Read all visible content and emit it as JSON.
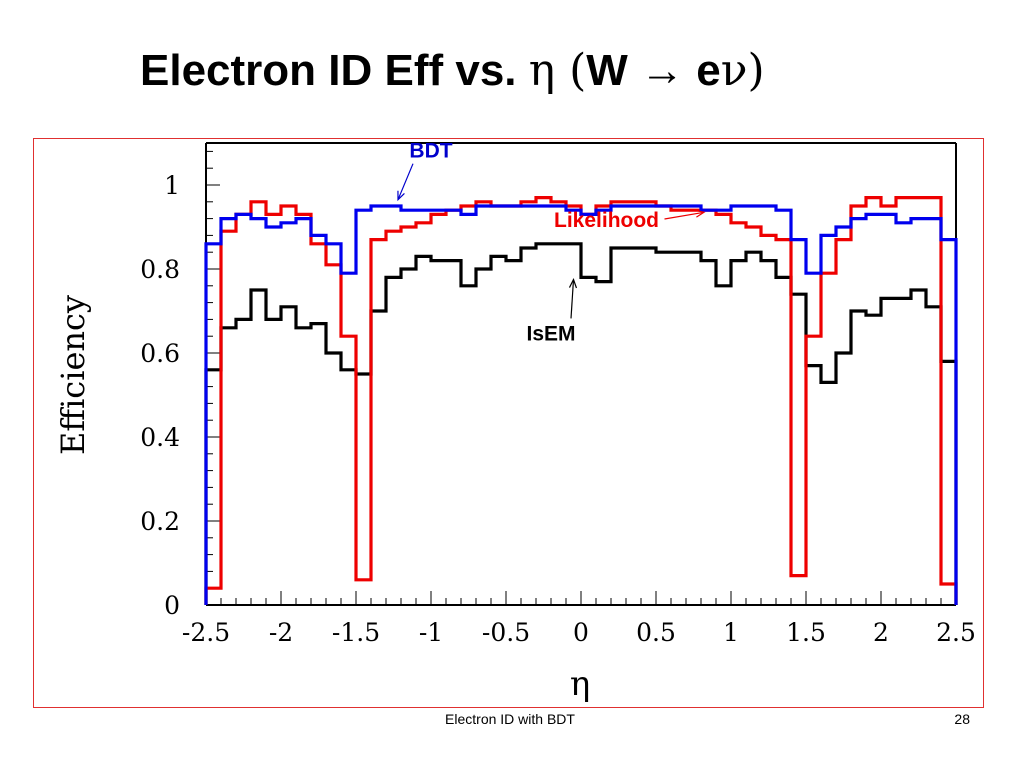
{
  "slide": {
    "title_parts": [
      "Electron ID Eff vs. ",
      "η",
      " (",
      "W ",
      "→",
      " e",
      "ν",
      ")"
    ],
    "footer": "Electron ID with BDT",
    "page_number": "28"
  },
  "chart_data": {
    "type": "line",
    "subtype": "step-histogram",
    "xlabel": "η",
    "ylabel": "Efficiency",
    "xlim": [
      -2.5,
      2.5
    ],
    "ylim": [
      0,
      1.1
    ],
    "x_ticks": [
      "-2.5",
      "-2",
      "-1.5",
      "-1",
      "-0.5",
      "0",
      "0.5",
      "1",
      "1.5",
      "2",
      "2.5"
    ],
    "x_tick_values": [
      -2.5,
      -2,
      -1.5,
      -1,
      -0.5,
      0,
      0.5,
      1,
      1.5,
      2,
      2.5
    ],
    "y_ticks": [
      "0",
      "0.2",
      "0.4",
      "0.6",
      "0.8",
      "1"
    ],
    "y_tick_values": [
      0,
      0.2,
      0.4,
      0.6,
      0.8,
      1
    ],
    "bin_edges": [
      -2.5,
      -2.4,
      -2.3,
      -2.2,
      -2.1,
      -2.0,
      -1.9,
      -1.8,
      -1.7,
      -1.6,
      -1.5,
      -1.4,
      -1.3,
      -1.2,
      -1.1,
      -1.0,
      -0.9,
      -0.8,
      -0.7,
      -0.6,
      -0.5,
      -0.4,
      -0.3,
      -0.2,
      -0.1,
      0.0,
      0.1,
      0.2,
      0.3,
      0.4,
      0.5,
      0.6,
      0.7,
      0.8,
      0.9,
      1.0,
      1.1,
      1.2,
      1.3,
      1.4,
      1.5,
      1.6,
      1.7,
      1.8,
      1.9,
      2.0,
      2.1,
      2.2,
      2.3,
      2.4,
      2.5
    ],
    "series": [
      {
        "name": "BDT",
        "color": "#0000ee",
        "values": [
          0.86,
          0.92,
          0.93,
          0.92,
          0.9,
          0.91,
          0.92,
          0.88,
          0.86,
          0.79,
          0.94,
          0.95,
          0.95,
          0.94,
          0.94,
          0.94,
          0.94,
          0.93,
          0.95,
          0.95,
          0.95,
          0.95,
          0.95,
          0.95,
          0.94,
          0.93,
          0.94,
          0.95,
          0.95,
          0.95,
          0.95,
          0.95,
          0.95,
          0.94,
          0.94,
          0.95,
          0.95,
          0.95,
          0.94,
          0.87,
          0.79,
          0.88,
          0.9,
          0.92,
          0.93,
          0.93,
          0.91,
          0.92,
          0.92,
          0.87
        ]
      },
      {
        "name": "Likelihood",
        "color": "#ee0000",
        "values": [
          0.04,
          0.89,
          0.93,
          0.96,
          0.93,
          0.95,
          0.93,
          0.86,
          0.81,
          0.64,
          0.06,
          0.87,
          0.89,
          0.9,
          0.91,
          0.93,
          0.94,
          0.95,
          0.96,
          0.95,
          0.95,
          0.96,
          0.97,
          0.96,
          0.95,
          0.93,
          0.95,
          0.96,
          0.96,
          0.96,
          0.95,
          0.94,
          0.94,
          0.94,
          0.93,
          0.91,
          0.9,
          0.88,
          0.87,
          0.07,
          0.64,
          0.79,
          0.87,
          0.95,
          0.97,
          0.95,
          0.97,
          0.97,
          0.97,
          0.05
        ]
      },
      {
        "name": "IsEM",
        "color": "#000000",
        "values": [
          0.56,
          0.66,
          0.68,
          0.75,
          0.68,
          0.71,
          0.66,
          0.67,
          0.6,
          0.56,
          0.55,
          0.7,
          0.78,
          0.8,
          0.83,
          0.82,
          0.82,
          0.76,
          0.8,
          0.83,
          0.82,
          0.85,
          0.86,
          0.86,
          0.86,
          0.78,
          0.77,
          0.85,
          0.85,
          0.85,
          0.84,
          0.84,
          0.84,
          0.82,
          0.76,
          0.82,
          0.84,
          0.82,
          0.78,
          0.74,
          0.57,
          0.53,
          0.6,
          0.7,
          0.69,
          0.73,
          0.73,
          0.75,
          0.71,
          0.58
        ]
      }
    ],
    "annotations": [
      {
        "text": "BDT",
        "color": "#0000cc",
        "x": -1.0,
        "y": 1.065,
        "arrow_to": [
          -1.22,
          0.965
        ]
      },
      {
        "text": "Likelihood",
        "color": "#ee0000",
        "x": 0.17,
        "y": 0.9,
        "arrow_to": [
          0.82,
          0.935
        ]
      },
      {
        "text": "IsEM",
        "color": "#000000",
        "x": -0.2,
        "y": 0.63,
        "arrow_to": [
          -0.05,
          0.775
        ]
      }
    ],
    "grid": false,
    "frame_color": "#e03030"
  }
}
